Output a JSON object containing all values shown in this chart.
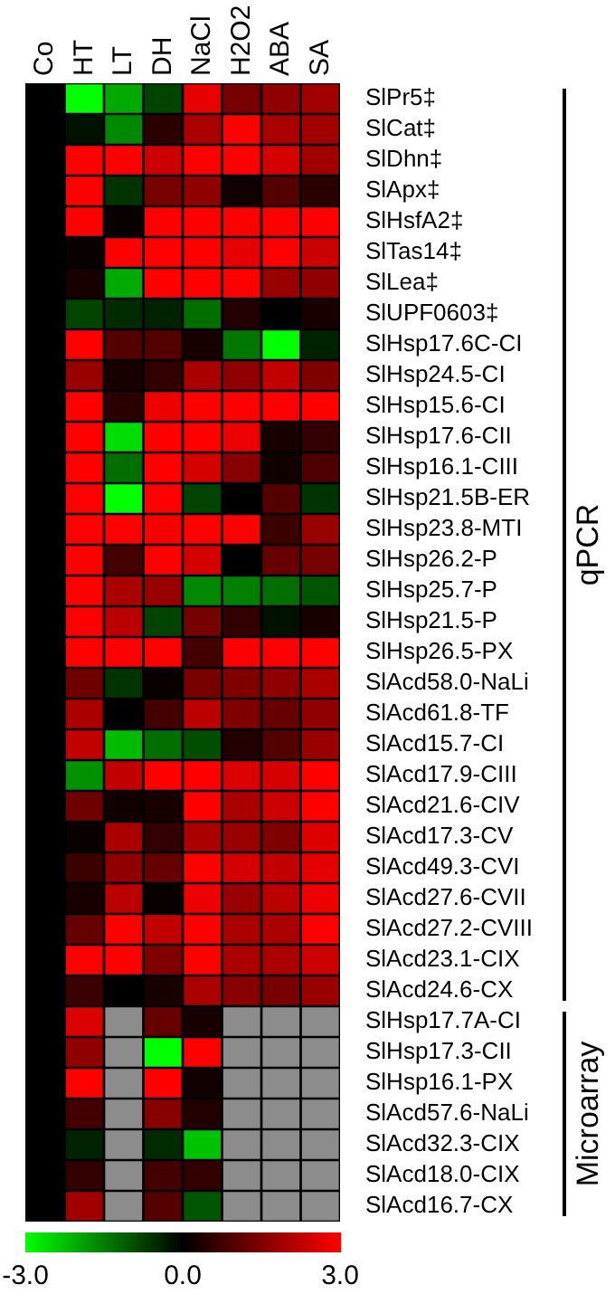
{
  "chart_data": {
    "type": "heatmap",
    "categories": [
      "Co",
      "HT",
      "LT",
      "DH",
      "NaCl",
      "H2O2",
      "ABA",
      "SA"
    ],
    "y_categories": [
      "SlPr5‡",
      "SlCat‡",
      "SlDhn‡",
      "SlApx‡",
      "SlHsfA2‡",
      "SlTas14‡",
      "SlLea‡",
      "SlUPF0603‡",
      "SlHsp17.6C-CI",
      "SlHsp24.5-CI",
      "SlHsp15.6-CI",
      "SlHsp17.6-CII",
      "SlHsp16.1-CIII",
      "SlHsp21.5B-ER",
      "SlHsp23.8-MTI",
      "SlHsp26.2-P",
      "SlHsp25.7-P",
      "SlHsp21.5-P",
      "SlHsp26.5-PX",
      "SlAcd58.0-NaLi",
      "SlAcd61.8-TF",
      "SlAcd15.7-CI",
      "SlAcd17.9-CIII",
      "SlAcd21.6-CIV",
      "SlAcd17.3-CV",
      "SlAcd49.3-CVI",
      "SlAcd27.6-CVII",
      "SlAcd27.2-CVIII",
      "SlAcd23.1-CIX",
      "SlAcd24.6-CX",
      "SlHsp17.7A-CI",
      "SlHsp17.3-CII",
      "SlHsp16.1-PX",
      "SlAcd57.6-NaLi",
      "SlAcd32.3-CIX",
      "SlAcd18.0-CIX",
      "SlAcd16.7-CX"
    ],
    "cells": [
      [
        0,
        -3,
        -2,
        -0.8,
        2.7,
        1.4,
        1.7,
        1.9
      ],
      [
        0,
        -0.2,
        -1.6,
        0.5,
        2,
        3,
        2,
        1.9
      ],
      [
        0,
        3,
        3,
        2.4,
        3,
        3,
        2.5,
        1.9
      ],
      [
        0,
        3,
        -0.6,
        1.4,
        1.7,
        0.2,
        1,
        0.5
      ],
      [
        0,
        3,
        0.1,
        3,
        3,
        3,
        3,
        3
      ],
      [
        0,
        0.1,
        3,
        3,
        3,
        2.7,
        3,
        2.4
      ],
      [
        0,
        0.3,
        -2,
        3,
        3,
        3,
        1.8,
        1.7
      ],
      [
        0,
        -0.8,
        -0.5,
        -0.4,
        -1.3,
        0.4,
        0,
        0.3
      ],
      [
        0,
        3,
        1,
        1,
        0.3,
        -1.4,
        -3,
        -0.4
      ],
      [
        0,
        1.8,
        0.3,
        0.6,
        2,
        1.7,
        2.3,
        1.5
      ],
      [
        0,
        3,
        0.5,
        2.8,
        3,
        3,
        3,
        3
      ],
      [
        0,
        3,
        -2.6,
        3,
        3,
        2.8,
        0.3,
        0.6
      ],
      [
        0,
        3,
        -1.3,
        3,
        2.5,
        1.6,
        0.2,
        0.9
      ],
      [
        0,
        3,
        -3,
        3,
        -0.8,
        0,
        1,
        -0.6
      ],
      [
        0,
        3,
        3,
        2.9,
        3,
        3,
        0.7,
        1.8
      ],
      [
        0,
        3,
        0.8,
        3,
        2.5,
        0,
        1.2,
        1.4
      ],
      [
        0,
        3,
        2,
        1.8,
        -1.6,
        -1.5,
        -1.3,
        -1
      ],
      [
        0,
        3,
        2.2,
        -0.8,
        1.4,
        0.6,
        -0.2,
        0.3
      ],
      [
        0,
        3,
        3,
        3,
        0.8,
        3,
        3,
        3
      ],
      [
        0,
        1.3,
        -0.6,
        0.1,
        1.4,
        1.5,
        1.7,
        2
      ],
      [
        0,
        2,
        0,
        0.8,
        2.2,
        1.5,
        1.2,
        1.7
      ],
      [
        0,
        2.3,
        -2.2,
        -1.3,
        -0.9,
        0.4,
        1,
        1.8
      ],
      [
        0,
        -1.7,
        2.3,
        3,
        3,
        2.6,
        2.5,
        3
      ],
      [
        0,
        1.3,
        0.2,
        0.3,
        3,
        2,
        2.4,
        3
      ],
      [
        0,
        0.1,
        2,
        0.6,
        2,
        1.8,
        1.5,
        2.6
      ],
      [
        0,
        0.7,
        1.7,
        1.2,
        3,
        2.5,
        2.3,
        2.7
      ],
      [
        0,
        0.3,
        2.2,
        0.1,
        2.8,
        1.8,
        2.2,
        2.8
      ],
      [
        0,
        1.2,
        3,
        2.3,
        3,
        2,
        2,
        3
      ],
      [
        0,
        3,
        3,
        1.5,
        3,
        2,
        2,
        2.4
      ],
      [
        0,
        0.7,
        0,
        0.3,
        2,
        1.6,
        1.4,
        1.8
      ],
      [
        0,
        2.6,
        null,
        1.2,
        0.3,
        null,
        null,
        null
      ],
      [
        0,
        1.7,
        null,
        -3,
        3,
        null,
        null,
        null
      ],
      [
        0,
        3,
        null,
        3,
        0.2,
        null,
        null,
        null
      ],
      [
        0,
        0.8,
        null,
        1.6,
        0.4,
        null,
        null,
        null
      ],
      [
        0,
        -0.4,
        null,
        -0.5,
        -2.3,
        null,
        null,
        null
      ],
      [
        0,
        0.6,
        null,
        0.8,
        0.6,
        null,
        null,
        null
      ],
      [
        0,
        1.9,
        null,
        1,
        -1,
        null,
        null,
        null
      ]
    ],
    "clim": [
      -3,
      3
    ],
    "cticks": [
      {
        "value": -3,
        "label": "-3.0"
      },
      {
        "value": 0,
        "label": "0.0"
      },
      {
        "value": 3,
        "label": "3.0"
      }
    ],
    "annotations": [
      "qPCR",
      "Microarray"
    ]
  }
}
